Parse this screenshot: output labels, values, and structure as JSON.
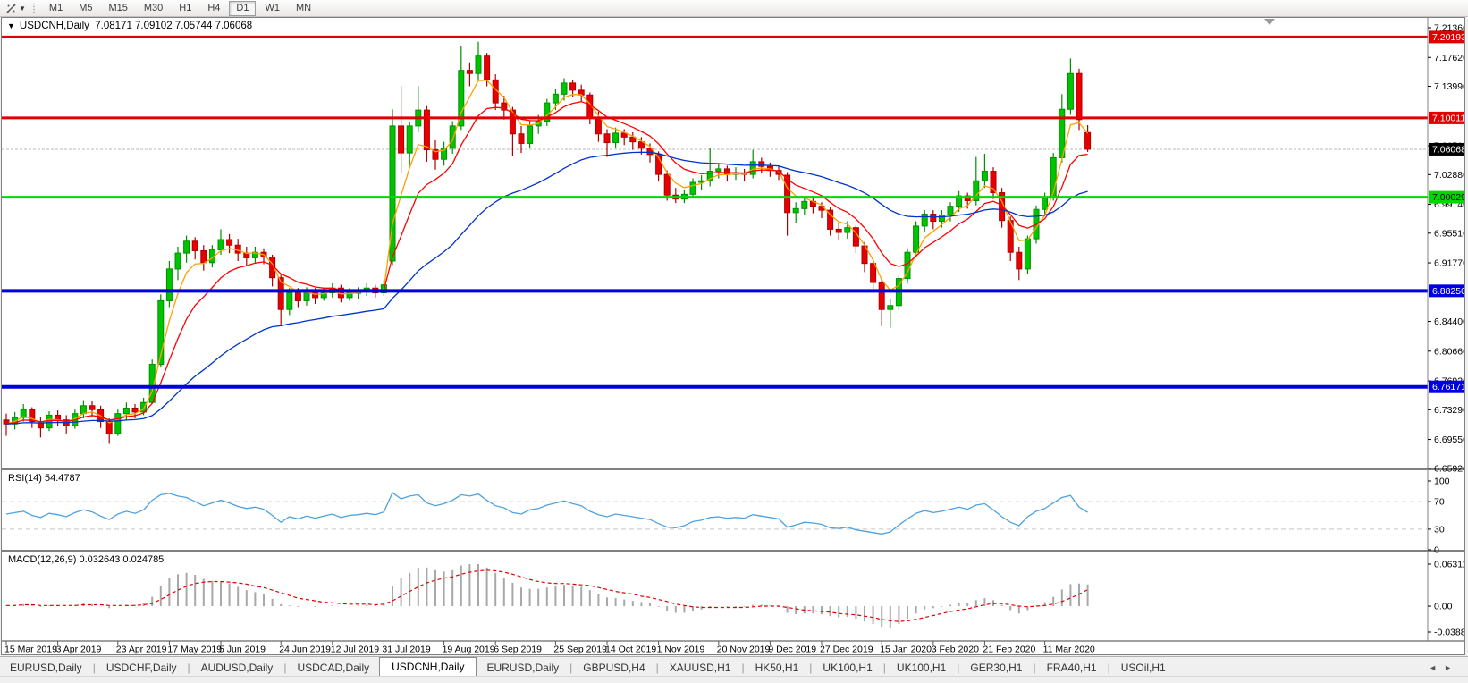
{
  "toolbar": {
    "cursor_tool": "crosshair-tool",
    "timeframes": [
      "M1",
      "M5",
      "M15",
      "M30",
      "H1",
      "H4",
      "D1",
      "W1",
      "MN"
    ],
    "active_timeframe": "D1"
  },
  "chart_header": {
    "symbol": "USDCNH,Daily",
    "ohlc": "7.08171 7.09102 7.05744 7.06068"
  },
  "rsi_panel": {
    "label": "RSI(14)",
    "value": "54.4787"
  },
  "macd_panel": {
    "label": "MACD(12,26,9)",
    "values": "0.032643 0.024785"
  },
  "tabs": {
    "items": [
      "EURUSD,Daily",
      "USDCHF,Daily",
      "AUDUSD,Daily",
      "USDCAD,Daily",
      "USDCNH,Daily",
      "EURUSD,Daily",
      "GBPUSD,H4",
      "XAUUSD,H1",
      "HK50,H1",
      "UK100,H1",
      "UK100,H1",
      "GER30,H1",
      "FRA40,H1",
      "USOil,H1"
    ],
    "active_index": 4,
    "scroll_left": "◄",
    "scroll_right": "►"
  },
  "chart_data": {
    "type": "candlestick",
    "symbol": "USDCNH",
    "timeframe": "Daily",
    "title": "USDCNH,Daily 7.08171 7.09102 7.05744 7.06068",
    "price_range": {
      "top": 7.226,
      "bottom": 6.659
    },
    "price_axis_ticks": [
      "7.21360",
      "7.17620",
      "7.13990",
      "7.06510",
      "7.02880",
      "6.99140",
      "6.95510",
      "6.91770",
      "6.84400",
      "6.80660",
      "6.76920",
      "6.73290",
      "6.69550",
      "6.65920"
    ],
    "x_labels": [
      "15 Mar 2019",
      "3 Apr 2019",
      "23 Apr 2019",
      "17 May 2019",
      "5 Jun 2019",
      "24 Jun 2019",
      "12 Jul 2019",
      "31 Jul 2019",
      "19 Aug 2019",
      "6 Sep 2019",
      "25 Sep 2019",
      "14 Oct 2019",
      "1 Nov 2019",
      "20 Nov 2019",
      "9 Dec 2019",
      "27 Dec 2019",
      "15 Jan 2020",
      "3 Feb 2020",
      "21 Feb 2020",
      "11 Mar 2020"
    ],
    "colors": {
      "candle_up": "#00c400",
      "candle_up_border": "#009000",
      "candle_down": "#e80000",
      "candle_down_border": "#b00000",
      "ma_fast": "#ffa000",
      "ma_medium": "#ff0000",
      "ma_slow": "#0033cc",
      "rsi_line": "#4da2e0",
      "macd_histogram": "#a8a8a8",
      "macd_signal": "#e00000",
      "level_red": "#e00000",
      "level_green": "#00d800",
      "level_blue": "#0000e0",
      "current_price_line": "#b8b8b8"
    },
    "levels": [
      {
        "value": 7.20193,
        "label": "7.20193",
        "color": "#e00000",
        "text_color": "#ffffff",
        "thickness": 3
      },
      {
        "value": 7.10011,
        "label": "7.10011",
        "color": "#e00000",
        "text_color": "#ffffff",
        "thickness": 3
      },
      {
        "value": 7.00029,
        "label": "7.00029",
        "color": "#00d800",
        "text_color": "#000000",
        "thickness": 3
      },
      {
        "value": 6.8825,
        "label": "6.88250",
        "color": "#0000e0",
        "text_color": "#ffffff",
        "thickness": 4
      },
      {
        "value": 6.76171,
        "label": "6.76171",
        "color": "#0000e0",
        "text_color": "#ffffff",
        "thickness": 4
      }
    ],
    "current_price": {
      "value": 7.06068,
      "label": "7.06068",
      "tag_bg": "#000000",
      "tag_text": "#ffffff"
    },
    "moving_averages": [
      {
        "name": "fast",
        "period": 4,
        "color": "#ffa000"
      },
      {
        "name": "medium",
        "period": 9,
        "color": "#ff0000"
      },
      {
        "name": "slow",
        "period": 34,
        "color": "#0033cc"
      }
    ],
    "candles": [
      [
        6.72,
        6.728,
        6.7,
        6.715
      ],
      [
        6.715,
        6.73,
        6.708,
        6.723
      ],
      [
        6.723,
        6.74,
        6.718,
        6.733
      ],
      [
        6.733,
        6.736,
        6.71,
        6.718
      ],
      [
        6.718,
        6.724,
        6.698,
        6.71
      ],
      [
        6.71,
        6.731,
        6.706,
        6.726
      ],
      [
        6.726,
        6.732,
        6.712,
        6.72
      ],
      [
        6.72,
        6.726,
        6.703,
        6.713
      ],
      [
        6.713,
        6.733,
        6.709,
        6.728
      ],
      [
        6.728,
        6.745,
        6.722,
        6.738
      ],
      [
        6.738,
        6.744,
        6.724,
        6.733
      ],
      [
        6.733,
        6.738,
        6.71,
        6.718
      ],
      [
        6.718,
        6.722,
        6.69,
        6.703
      ],
      [
        6.703,
        6.733,
        6.7,
        6.728
      ],
      [
        6.728,
        6.742,
        6.72,
        6.735
      ],
      [
        6.735,
        6.74,
        6.722,
        6.73
      ],
      [
        6.73,
        6.748,
        6.726,
        6.742
      ],
      [
        6.742,
        6.796,
        6.74,
        6.79
      ],
      [
        6.79,
        6.878,
        6.786,
        6.87
      ],
      [
        6.87,
        6.92,
        6.862,
        6.91
      ],
      [
        6.91,
        6.938,
        6.896,
        6.93
      ],
      [
        6.93,
        6.952,
        6.918,
        6.945
      ],
      [
        6.945,
        6.95,
        6.922,
        6.933
      ],
      [
        6.933,
        6.94,
        6.908,
        6.918
      ],
      [
        6.918,
        6.94,
        6.912,
        6.934
      ],
      [
        6.934,
        6.96,
        6.928,
        6.947
      ],
      [
        6.947,
        6.954,
        6.93,
        6.94
      ],
      [
        6.94,
        6.948,
        6.92,
        6.93
      ],
      [
        6.93,
        6.938,
        6.914,
        6.924
      ],
      [
        6.924,
        6.938,
        6.918,
        6.931
      ],
      [
        6.931,
        6.936,
        6.916,
        6.925
      ],
      [
        6.925,
        6.928,
        6.888,
        6.899
      ],
      [
        6.899,
        6.903,
        6.838,
        6.859
      ],
      [
        6.859,
        6.886,
        6.852,
        6.88
      ],
      [
        6.88,
        6.886,
        6.862,
        6.87
      ],
      [
        6.87,
        6.887,
        6.864,
        6.881
      ],
      [
        6.881,
        6.886,
        6.866,
        6.874
      ],
      [
        6.874,
        6.886,
        6.87,
        6.88
      ],
      [
        6.88,
        6.892,
        6.874,
        6.886
      ],
      [
        6.886,
        6.89,
        6.868,
        6.874
      ],
      [
        6.874,
        6.886,
        6.87,
        6.88
      ],
      [
        6.88,
        6.887,
        6.872,
        6.881
      ],
      [
        6.881,
        6.892,
        6.876,
        6.886
      ],
      [
        6.886,
        6.89,
        6.874,
        6.88
      ],
      [
        6.88,
        6.896,
        6.876,
        6.89
      ],
      [
        6.92,
        7.111,
        6.915,
        7.09
      ],
      [
        7.09,
        7.14,
        7.03,
        7.056
      ],
      [
        7.056,
        7.095,
        7.04,
        7.09
      ],
      [
        7.09,
        7.14,
        7.082,
        7.11
      ],
      [
        7.11,
        7.115,
        7.045,
        7.06
      ],
      [
        7.06,
        7.072,
        7.035,
        7.048
      ],
      [
        7.048,
        7.07,
        7.04,
        7.062
      ],
      [
        7.062,
        7.096,
        7.055,
        7.09
      ],
      [
        7.09,
        7.19,
        7.085,
        7.16
      ],
      [
        7.16,
        7.17,
        7.14,
        7.156
      ],
      [
        7.156,
        7.196,
        7.148,
        7.178
      ],
      [
        7.178,
        7.182,
        7.14,
        7.148
      ],
      [
        7.148,
        7.155,
        7.11,
        7.119
      ],
      [
        7.119,
        7.128,
        7.098,
        7.11
      ],
      [
        7.11,
        7.114,
        7.052,
        7.08
      ],
      [
        7.08,
        7.09,
        7.056,
        7.068
      ],
      [
        7.068,
        7.096,
        7.062,
        7.09
      ],
      [
        7.09,
        7.104,
        7.08,
        7.096
      ],
      [
        7.096,
        7.124,
        7.09,
        7.119
      ],
      [
        7.119,
        7.136,
        7.11,
        7.13
      ],
      [
        7.13,
        7.15,
        7.122,
        7.144
      ],
      [
        7.144,
        7.148,
        7.126,
        7.135
      ],
      [
        7.135,
        7.142,
        7.12,
        7.129
      ],
      [
        7.129,
        7.132,
        7.092,
        7.101
      ],
      [
        7.101,
        7.108,
        7.07,
        7.08
      ],
      [
        7.08,
        7.086,
        7.051,
        7.069
      ],
      [
        7.069,
        7.088,
        7.062,
        7.081
      ],
      [
        7.081,
        7.086,
        7.066,
        7.076
      ],
      [
        7.076,
        7.082,
        7.06,
        7.07
      ],
      [
        7.07,
        7.076,
        7.054,
        7.062
      ],
      [
        7.062,
        7.068,
        7.044,
        7.054
      ],
      [
        7.054,
        7.058,
        7.02,
        7.029
      ],
      [
        7.029,
        7.034,
        6.996,
        7.003
      ],
      [
        7.003,
        7.012,
        6.993,
        6.998
      ],
      [
        6.998,
        7.01,
        6.993,
        7.004
      ],
      [
        7.004,
        7.024,
        6.999,
        7.019
      ],
      [
        7.019,
        7.028,
        7.01,
        7.021
      ],
      [
        7.021,
        7.062,
        7.014,
        7.033
      ],
      [
        7.033,
        7.042,
        7.024,
        7.036
      ],
      [
        7.036,
        7.04,
        7.02,
        7.029
      ],
      [
        7.029,
        7.038,
        7.022,
        7.031
      ],
      [
        7.031,
        7.036,
        7.02,
        7.029
      ],
      [
        7.029,
        7.06,
        7.024,
        7.045
      ],
      [
        7.045,
        7.05,
        7.03,
        7.039
      ],
      [
        7.039,
        7.044,
        7.026,
        7.034
      ],
      [
        7.034,
        7.04,
        7.022,
        7.029
      ],
      [
        7.028,
        7.032,
        6.952,
        6.981
      ],
      [
        6.981,
        6.994,
        6.968,
        6.986
      ],
      [
        6.986,
        7.0,
        6.978,
        6.995
      ],
      [
        6.995,
        6.999,
        6.98,
        6.989
      ],
      [
        6.989,
        6.994,
        6.974,
        6.984
      ],
      [
        6.984,
        6.988,
        6.952,
        6.96
      ],
      [
        6.96,
        6.968,
        6.946,
        6.956
      ],
      [
        6.956,
        6.97,
        6.948,
        6.962
      ],
      [
        6.962,
        6.965,
        6.93,
        6.939
      ],
      [
        6.939,
        6.944,
        6.906,
        6.917
      ],
      [
        6.917,
        6.922,
        6.88,
        6.893
      ],
      [
        6.893,
        6.896,
        6.838,
        6.859
      ],
      [
        6.859,
        6.872,
        6.836,
        6.864
      ],
      [
        6.864,
        6.902,
        6.858,
        6.898
      ],
      [
        6.898,
        6.936,
        6.892,
        6.931
      ],
      [
        6.931,
        6.97,
        6.926,
        6.964
      ],
      [
        6.964,
        6.984,
        6.956,
        6.979
      ],
      [
        6.979,
        6.984,
        6.96,
        6.97
      ],
      [
        6.97,
        6.984,
        6.962,
        6.978
      ],
      [
        6.978,
        6.994,
        6.97,
        6.989
      ],
      [
        6.989,
        7.008,
        6.982,
        7.002
      ],
      [
        7.002,
        7.006,
        6.986,
        6.996
      ],
      [
        6.996,
        7.051,
        6.99,
        7.021
      ],
      [
        7.021,
        7.055,
        7.012,
        7.033
      ],
      [
        7.033,
        7.038,
        6.998,
        7.006
      ],
      [
        7.006,
        7.012,
        6.962,
        6.971
      ],
      [
        6.971,
        6.976,
        6.92,
        6.931
      ],
      [
        6.931,
        6.938,
        6.896,
        6.91
      ],
      [
        6.91,
        6.952,
        6.904,
        6.948
      ],
      [
        6.948,
        6.99,
        6.942,
        6.985
      ],
      [
        6.985,
        7.006,
        6.978,
        7.001
      ],
      [
        7.001,
        7.056,
        6.996,
        7.05
      ],
      [
        7.05,
        7.13,
        7.044,
        7.111
      ],
      [
        7.111,
        7.175,
        7.104,
        7.156
      ],
      [
        7.156,
        7.162,
        7.085,
        7.098
      ],
      [
        7.0817,
        7.091,
        7.0574,
        7.0607
      ]
    ],
    "indicators": {
      "rsi": {
        "label": "RSI(14)",
        "value": "54.4787",
        "range": [
          0,
          100
        ],
        "axis_ticks": [
          "100",
          "70",
          "30",
          "0"
        ],
        "guide_levels": [
          70,
          30
        ],
        "series": [
          52,
          54,
          56,
          50,
          47,
          53,
          51,
          48,
          54,
          58,
          55,
          49,
          44,
          52,
          56,
          53,
          58,
          72,
          80,
          82,
          78,
          76,
          70,
          64,
          68,
          72,
          68,
          63,
          60,
          62,
          59,
          50,
          40,
          48,
          45,
          49,
          46,
          49,
          52,
          47,
          50,
          51,
          53,
          51,
          55,
          83,
          74,
          78,
          80,
          68,
          64,
          67,
          72,
          80,
          78,
          81,
          72,
          64,
          61,
          54,
          52,
          58,
          60,
          65,
          68,
          71,
          67,
          64,
          56,
          51,
          48,
          52,
          50,
          48,
          46,
          44,
          38,
          33,
          32,
          35,
          41,
          43,
          47,
          48,
          46,
          47,
          46,
          51,
          49,
          47,
          45,
          33,
          36,
          40,
          39,
          37,
          32,
          31,
          33,
          29,
          27,
          25,
          23,
          26,
          36,
          45,
          53,
          57,
          54,
          56,
          59,
          62,
          59,
          65,
          67,
          58,
          48,
          40,
          35,
          48,
          56,
          60,
          68,
          76,
          79,
          62,
          54.48
        ]
      },
      "macd": {
        "label": "MACD(12,26,9)",
        "values": "0.032643 0.024785",
        "range": [
          -0.038872,
          0.063113
        ],
        "axis_ticks": [
          "0.063113",
          "0.00",
          "-0.038872"
        ],
        "histogram": [
          0.001,
          0.002,
          0.003,
          0.001,
          -0.001,
          0.001,
          0.001,
          0.0,
          0.002,
          0.004,
          0.003,
          0.0,
          -0.003,
          0.0,
          0.002,
          0.002,
          0.004,
          0.014,
          0.03,
          0.042,
          0.048,
          0.05,
          0.047,
          0.041,
          0.038,
          0.037,
          0.034,
          0.029,
          0.024,
          0.021,
          0.018,
          0.011,
          0.003,
          0.001,
          -0.001,
          0.0,
          -0.001,
          0.0,
          0.001,
          0.0,
          0.0,
          0.001,
          0.002,
          0.002,
          0.004,
          0.03,
          0.042,
          0.05,
          0.058,
          0.058,
          0.054,
          0.052,
          0.054,
          0.061,
          0.063,
          0.0631,
          0.058,
          0.05,
          0.043,
          0.035,
          0.028,
          0.026,
          0.026,
          0.028,
          0.03,
          0.032,
          0.031,
          0.029,
          0.024,
          0.018,
          0.013,
          0.012,
          0.01,
          0.008,
          0.006,
          0.004,
          -0.001,
          -0.007,
          -0.01,
          -0.01,
          -0.007,
          -0.005,
          -0.002,
          0.0,
          -0.001,
          -0.001,
          -0.001,
          0.002,
          0.002,
          0.001,
          -0.001,
          -0.01,
          -0.012,
          -0.011,
          -0.011,
          -0.012,
          -0.015,
          -0.017,
          -0.016,
          -0.019,
          -0.023,
          -0.027,
          -0.031,
          -0.032,
          -0.027,
          -0.019,
          -0.011,
          -0.005,
          -0.003,
          -0.001,
          0.002,
          0.005,
          0.005,
          0.009,
          0.012,
          0.009,
          0.002,
          -0.006,
          -0.011,
          -0.006,
          0.001,
          0.006,
          0.014,
          0.025,
          0.033,
          0.034,
          0.0326
        ],
        "signal": [
          0.001,
          0.001,
          0.002,
          0.002,
          0.001,
          0.001,
          0.001,
          0.001,
          0.001,
          0.002,
          0.002,
          0.002,
          0.001,
          0.001,
          0.001,
          0.001,
          0.002,
          0.004,
          0.01,
          0.017,
          0.024,
          0.03,
          0.034,
          0.036,
          0.037,
          0.037,
          0.036,
          0.035,
          0.033,
          0.03,
          0.028,
          0.024,
          0.02,
          0.016,
          0.012,
          0.01,
          0.008,
          0.006,
          0.005,
          0.004,
          0.003,
          0.003,
          0.003,
          0.002,
          0.003,
          0.008,
          0.015,
          0.022,
          0.029,
          0.035,
          0.039,
          0.042,
          0.044,
          0.048,
          0.051,
          0.053,
          0.054,
          0.053,
          0.051,
          0.048,
          0.044,
          0.04,
          0.037,
          0.035,
          0.034,
          0.034,
          0.033,
          0.032,
          0.031,
          0.028,
          0.025,
          0.022,
          0.02,
          0.018,
          0.015,
          0.013,
          0.01,
          0.007,
          0.003,
          0.001,
          -0.001,
          -0.002,
          -0.002,
          -0.002,
          -0.002,
          -0.002,
          -0.002,
          -0.001,
          0.0,
          0.0,
          0.0,
          -0.002,
          -0.004,
          -0.006,
          -0.007,
          -0.008,
          -0.009,
          -0.011,
          -0.012,
          -0.013,
          -0.015,
          -0.017,
          -0.02,
          -0.022,
          -0.023,
          -0.022,
          -0.02,
          -0.017,
          -0.014,
          -0.011,
          -0.008,
          -0.006,
          -0.004,
          -0.001,
          0.002,
          0.004,
          0.004,
          0.002,
          0.0,
          -0.001,
          0.0,
          0.001,
          0.003,
          0.007,
          0.012,
          0.018,
          0.0248
        ]
      }
    }
  }
}
